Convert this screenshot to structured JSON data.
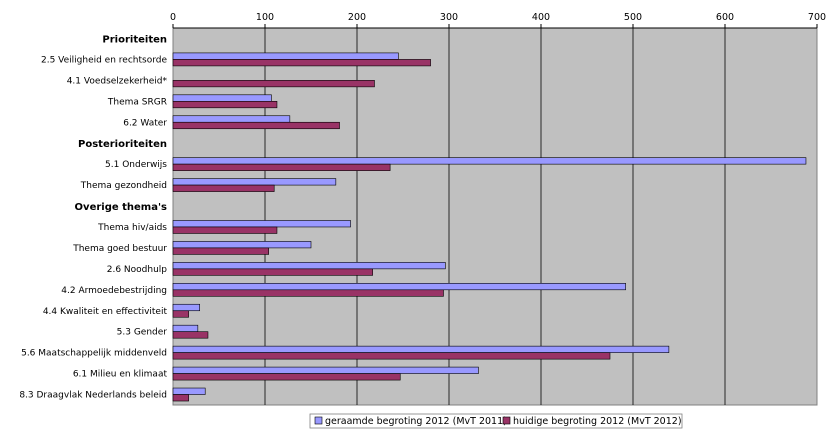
{
  "chart_data": {
    "type": "bar",
    "orientation": "horizontal",
    "rows": [
      {
        "label": "Prioriteiten",
        "kind": "header"
      },
      {
        "label": "2.5 Veiligheid en rechtsorde",
        "kind": "item",
        "values": [
          245,
          280
        ]
      },
      {
        "label": "4.1 Voedselzekerheid*",
        "kind": "item",
        "values": [
          null,
          219
        ]
      },
      {
        "label": "Thema SRGR",
        "kind": "item",
        "values": [
          107,
          113
        ]
      },
      {
        "label": "6.2 Water",
        "kind": "item",
        "values": [
          127,
          181
        ]
      },
      {
        "label": "Posterioriteiten",
        "kind": "header"
      },
      {
        "label": "5.1 Onderwijs",
        "kind": "item",
        "values": [
          688,
          236
        ]
      },
      {
        "label": "Thema gezondheid",
        "kind": "item",
        "values": [
          177,
          110
        ]
      },
      {
        "label": "Overige thema's",
        "kind": "header"
      },
      {
        "label": "Thema hiv/aids",
        "kind": "item",
        "values": [
          193,
          113
        ]
      },
      {
        "label": "Thema goed bestuur",
        "kind": "item",
        "values": [
          150,
          104
        ]
      },
      {
        "label": "2.6 Noodhulp",
        "kind": "item",
        "values": [
          296,
          217
        ]
      },
      {
        "label": "4.2 Armoedebestrijding",
        "kind": "item",
        "values": [
          492,
          294
        ]
      },
      {
        "label": "4.4 Kwaliteit en effectiviteit",
        "kind": "item",
        "values": [
          29,
          17
        ]
      },
      {
        "label": "5.3 Gender",
        "kind": "item",
        "values": [
          27,
          38
        ]
      },
      {
        "label": "5.6 Maatschappelijk middenveld",
        "kind": "item",
        "values": [
          539,
          475
        ]
      },
      {
        "label": "6.1 Milieu en klimaat",
        "kind": "item",
        "values": [
          332,
          247
        ]
      },
      {
        "label": "8.3 Draagvlak Nederlands beleid",
        "kind": "item",
        "values": [
          35,
          17
        ]
      }
    ],
    "series": [
      {
        "name": "geraamde begroting 2012 (MvT 2011)",
        "color": "#9999ff"
      },
      {
        "name": "huidige begroting 2012 (MvT 2012)",
        "color": "#993366"
      }
    ],
    "xlim": [
      0,
      700
    ],
    "xticks": [
      0,
      100,
      200,
      300,
      400,
      500,
      600,
      700
    ],
    "x_axis_position": "top",
    "grid": true,
    "plot_background": "#c0c0c0",
    "legend_position": "bottom"
  }
}
